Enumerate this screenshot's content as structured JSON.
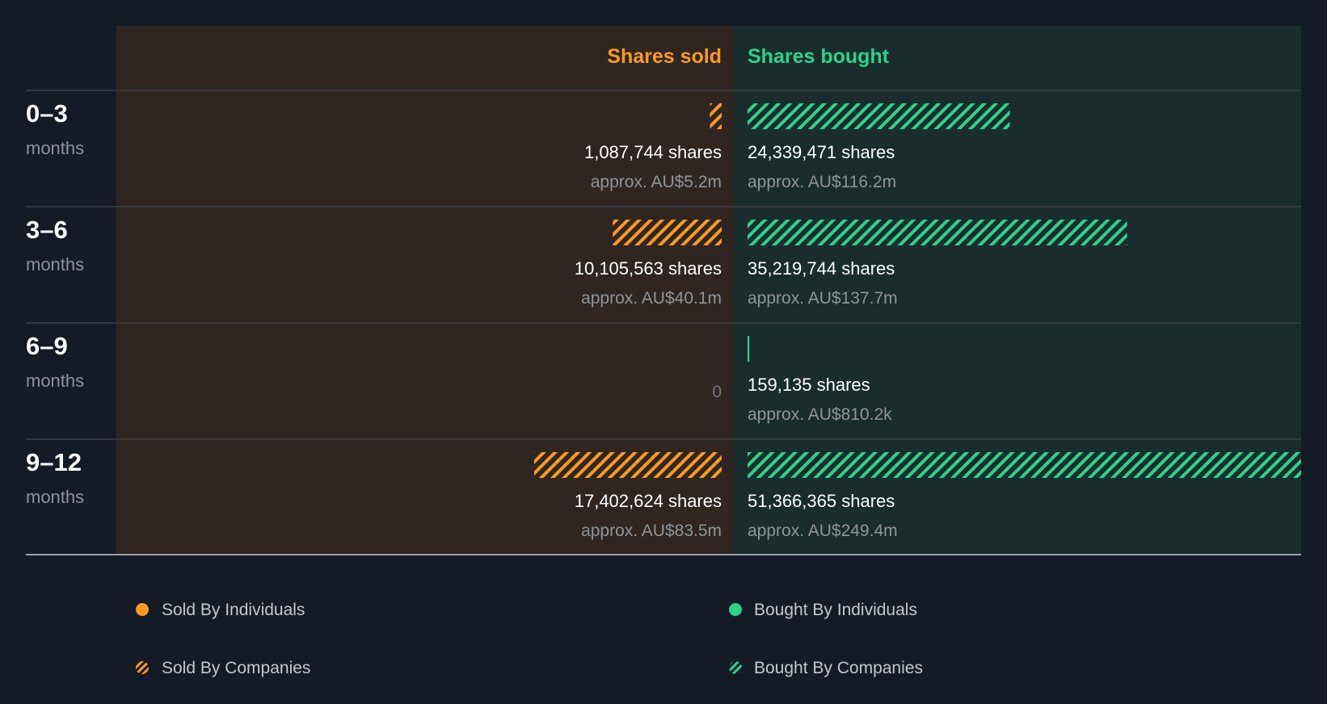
{
  "colors": {
    "background": "#141b24",
    "sold_panel": "#2f2622",
    "bought_panel": "#182d2c",
    "sold": "#fa9a1e",
    "bought": "#2ed18a",
    "divider": "#3a4047",
    "baseline": "#9aa0a6"
  },
  "chart_data": {
    "type": "bar",
    "orientation": "horizontal-diverging",
    "headers": {
      "sold": "Shares sold",
      "bought": "Shares bought"
    },
    "periods": [
      {
        "period": "0–3",
        "unit": "months",
        "sold": {
          "value": 1087744,
          "shares_label": "1,087,744 shares",
          "approx_label": "approx. AU$5.2m"
        },
        "bought": {
          "value": 24339471,
          "shares_label": "24,339,471 shares",
          "approx_label": "approx. AU$116.2m"
        }
      },
      {
        "period": "3–6",
        "unit": "months",
        "sold": {
          "value": 10105563,
          "shares_label": "10,105,563 shares",
          "approx_label": "approx. AU$40.1m"
        },
        "bought": {
          "value": 35219744,
          "shares_label": "35,219,744 shares",
          "approx_label": "approx. AU$137.7m"
        }
      },
      {
        "period": "6–9",
        "unit": "months",
        "sold": {
          "value": 0,
          "zero_label": "0"
        },
        "bought": {
          "value": 159135,
          "shares_label": "159,135 shares",
          "approx_label": "approx. AU$810.2k"
        }
      },
      {
        "period": "9–12",
        "unit": "months",
        "sold": {
          "value": 17402624,
          "shares_label": "17,402,624 shares",
          "approx_label": "approx. AU$83.5m"
        },
        "bought": {
          "value": 51366365,
          "shares_label": "51,366,365 shares",
          "approx_label": "approx. AU$249.4m"
        }
      }
    ],
    "scale_max": 51366365,
    "legend": [
      {
        "label": "Sold By Individuals",
        "series": "sold",
        "style": "solid"
      },
      {
        "label": "Bought By Individuals",
        "series": "bought",
        "style": "solid"
      },
      {
        "label": "Sold By Companies",
        "series": "sold",
        "style": "hatched"
      },
      {
        "label": "Bought By Companies",
        "series": "bought",
        "style": "hatched"
      }
    ]
  }
}
